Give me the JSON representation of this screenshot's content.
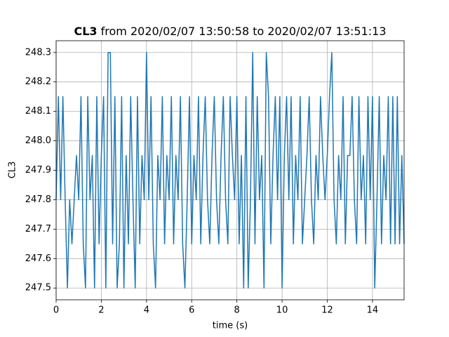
{
  "chart_data": {
    "type": "line",
    "title": {
      "bold": "CL3",
      "text": "from 2020/02/07 13:50:58 to 2020/02/07 13:51:13"
    },
    "xlabel": "time (s)",
    "ylabel": "CL3",
    "color": "#1f77b4",
    "grid": true,
    "xlim": [
      0,
      15.4
    ],
    "ylim": [
      247.46,
      248.34
    ],
    "xticks": [
      0,
      2,
      4,
      6,
      8,
      10,
      12,
      14
    ],
    "yticks": [
      247.5,
      247.6,
      247.7,
      247.8,
      247.9,
      {
        "value": 248,
        "label": "248.0"
      },
      248.1,
      248.2,
      248.3
    ],
    "x": [
      0,
      0.1,
      0.2,
      0.3,
      0.4,
      0.5,
      0.6,
      0.7,
      0.8,
      0.9,
      1,
      1.1,
      1.2,
      1.3,
      1.4,
      1.5,
      1.6,
      1.7,
      1.8,
      1.9,
      2,
      2.1,
      2.2,
      2.3,
      2.4,
      2.5,
      2.6,
      2.7,
      2.8,
      2.9,
      3,
      3.1,
      3.2,
      3.3,
      3.4,
      3.5,
      3.6,
      3.7,
      3.8,
      3.9,
      4,
      4.1,
      4.2,
      4.3,
      4.4,
      4.5,
      4.6,
      4.7,
      4.8,
      4.9,
      5,
      5.1,
      5.2,
      5.3,
      5.4,
      5.5,
      5.6,
      5.7,
      5.8,
      5.9,
      6,
      6.1,
      6.2,
      6.3,
      6.4,
      6.5,
      6.6,
      6.7,
      6.8,
      6.9,
      7,
      7.1,
      7.2,
      7.3,
      7.4,
      7.5,
      7.6,
      7.7,
      7.8,
      7.9,
      8,
      8.1,
      8.2,
      8.3,
      8.4,
      8.5,
      8.6,
      8.7,
      8.8,
      8.9,
      9,
      9.1,
      9.2,
      9.3,
      9.4,
      9.5,
      9.6,
      9.7,
      9.8,
      9.9,
      10,
      10.1,
      10.2,
      10.3,
      10.4,
      10.5,
      10.6,
      10.7,
      10.8,
      10.9,
      11,
      11.1,
      11.2,
      11.3,
      11.4,
      11.5,
      11.6,
      11.7,
      11.8,
      11.9,
      12,
      12.1,
      12.2,
      12.3,
      12.4,
      12.5,
      12.6,
      12.7,
      12.8,
      12.9,
      13,
      13.1,
      13.2,
      13.3,
      13.4,
      13.5,
      13.6,
      13.7,
      13.8,
      13.9,
      14,
      14.1,
      14.2,
      14.3,
      14.4,
      14.5,
      14.6,
      14.7,
      14.8,
      14.9,
      15,
      15.1,
      15.2,
      15.3,
      15.4
    ],
    "values": [
      247.8,
      248.15,
      247.8,
      248.15,
      247.8,
      247.5,
      247.8,
      247.65,
      247.8,
      247.95,
      247.8,
      248.15,
      247.65,
      247.5,
      248.15,
      247.8,
      247.95,
      247.5,
      248.15,
      247.65,
      247.95,
      248.15,
      247.5,
      248.3,
      248.3,
      247.65,
      248.15,
      247.5,
      247.65,
      248.15,
      247.5,
      247.95,
      247.65,
      248.15,
      247.8,
      247.5,
      248.15,
      247.65,
      247.95,
      247.8,
      248.3,
      247.8,
      248.15,
      247.65,
      247.5,
      247.95,
      247.8,
      248.15,
      247.65,
      247.95,
      247.8,
      248.15,
      247.65,
      247.95,
      247.8,
      248.15,
      247.65,
      247.5,
      247.8,
      248.15,
      247.65,
      247.95,
      247.8,
      248.15,
      247.65,
      247.95,
      248.15,
      247.8,
      247.65,
      247.95,
      248.15,
      247.8,
      247.65,
      247.95,
      248.15,
      247.8,
      247.65,
      248.15,
      247.95,
      247.8,
      248.15,
      247.65,
      247.95,
      247.5,
      248.15,
      247.5,
      247.8,
      248.3,
      247.65,
      248.15,
      247.8,
      247.95,
      247.5,
      248.3,
      248.15,
      247.65,
      247.95,
      248.15,
      247.8,
      248.15,
      247.5,
      247.95,
      248.15,
      247.8,
      248.15,
      247.65,
      247.95,
      247.8,
      248.15,
      247.65,
      247.8,
      247.95,
      248.15,
      247.8,
      247.65,
      247.95,
      247.8,
      248.15,
      247.95,
      247.8,
      247.95,
      248.15,
      248.3,
      247.8,
      247.65,
      247.95,
      247.8,
      248.15,
      247.65,
      247.95,
      247.95,
      248.15,
      247.8,
      247.65,
      248.15,
      247.8,
      247.95,
      247.65,
      248.15,
      247.8,
      248.15,
      247.5,
      247.8,
      248.15,
      247.65,
      247.95,
      247.8,
      248.15,
      247.65,
      248.15,
      247.65,
      248.15,
      247.65,
      247.95,
      247.65
    ]
  }
}
